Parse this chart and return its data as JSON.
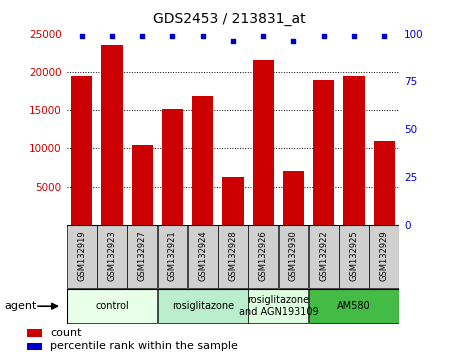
{
  "title": "GDS2453 / 213831_at",
  "samples": [
    "GSM132919",
    "GSM132923",
    "GSM132927",
    "GSM132921",
    "GSM132924",
    "GSM132928",
    "GSM132926",
    "GSM132930",
    "GSM132922",
    "GSM132925",
    "GSM132929"
  ],
  "counts": [
    19400,
    23500,
    10500,
    15200,
    16800,
    6300,
    21500,
    7100,
    19000,
    19500,
    11000
  ],
  "percentiles": [
    99,
    99,
    99,
    99,
    99,
    96,
    99,
    96,
    99,
    99,
    99
  ],
  "bar_color": "#cc0000",
  "dot_color": "#0000cc",
  "ylim_left": [
    0,
    25000
  ],
  "ylim_right": [
    0,
    100
  ],
  "yticks_left": [
    5000,
    10000,
    15000,
    20000,
    25000
  ],
  "yticks_right": [
    0,
    25,
    50,
    75,
    100
  ],
  "groups": [
    {
      "label": "control",
      "start": 0,
      "end": 2,
      "color": "#e8ffe8"
    },
    {
      "label": "rosiglitazone",
      "start": 3,
      "end": 5,
      "color": "#bbeecc"
    },
    {
      "label": "rosiglitazone\nand AGN193109",
      "start": 6,
      "end": 7,
      "color": "#ddffdd"
    },
    {
      "label": "AM580",
      "start": 8,
      "end": 10,
      "color": "#44bb44"
    }
  ],
  "agent_label": "agent",
  "legend_count_label": "count",
  "legend_pct_label": "percentile rank within the sample",
  "tick_label_color_left": "#cc0000",
  "tick_label_color_right": "#0000cc",
  "background_color": "#ffffff",
  "plot_background": "#ffffff",
  "sample_box_color": "#d0d0d0"
}
